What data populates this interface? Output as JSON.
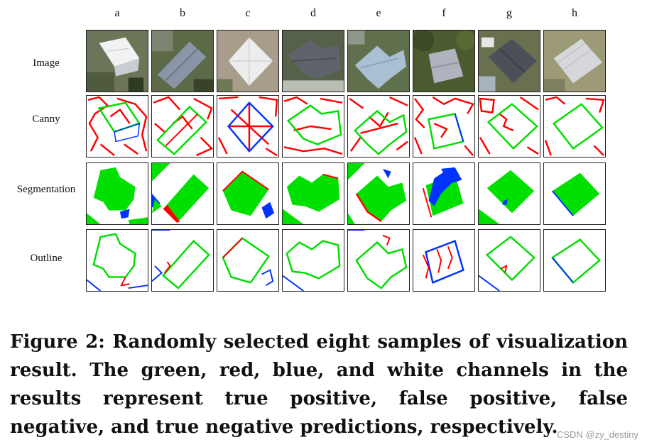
{
  "columns": [
    "a",
    "b",
    "c",
    "d",
    "e",
    "f",
    "g",
    "h"
  ],
  "rows": [
    "Image",
    "Canny",
    "Segmentation",
    "Outline"
  ],
  "caption": "Figure 2: Randomly selected eight samples of visualization result. The green, red, blue, and white channels in the results represent true positive, false positive, false negative, and true negative predictions, respectively.",
  "watermark": "CSDN @zy_destiny",
  "colors": {
    "true_positive": "#00e000",
    "false_positive": "#ff0000",
    "false_negative": "#0033ff",
    "true_negative": "#ffffff"
  }
}
